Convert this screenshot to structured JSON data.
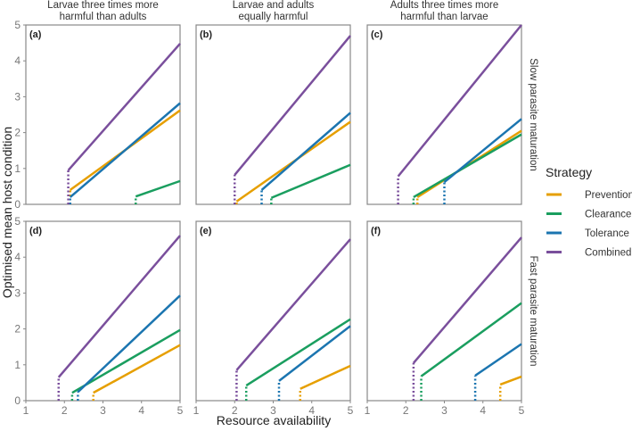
{
  "chart_data": {
    "type": "line",
    "xlabel": "Resource availability",
    "ylabel": "Optimised mean host condition",
    "xlim": [
      1,
      5
    ],
    "ylim": [
      0,
      5
    ],
    "xticks": [
      "1",
      "2",
      "3",
      "4",
      "5"
    ],
    "yticks": [
      "0",
      "1",
      "2",
      "3",
      "4",
      "5"
    ],
    "column_titles": [
      [
        "Larvae three times more",
        "harmful than adults"
      ],
      [
        "Larvae and adults",
        "equally harmful"
      ],
      [
        "Adults three times more",
        "harmful than larvae"
      ]
    ],
    "row_titles": [
      "Slow parasite maturation",
      "Fast parasite maturation"
    ],
    "legend": {
      "title": "Strategy",
      "position": "right",
      "entries": [
        "Prevention",
        "Clearance",
        "Tolerance",
        "Combined"
      ]
    },
    "colors": {
      "Prevention": "#E69F00",
      "Clearance": "#1A9E5F",
      "Tolerance": "#1B75B0",
      "Combined": "#7A4F9C"
    },
    "panels": [
      {
        "label": "(a)",
        "series": [
          {
            "name": "Prevention",
            "x": [
              2.15,
              5
            ],
            "y": [
              0.4,
              2.62
            ]
          },
          {
            "name": "Clearance",
            "x": [
              3.85,
              5
            ],
            "y": [
              0.22,
              0.65
            ]
          },
          {
            "name": "Tolerance",
            "x": [
              2.15,
              5
            ],
            "y": [
              0.2,
              2.82
            ]
          },
          {
            "name": "Combined",
            "x": [
              2.1,
              5
            ],
            "y": [
              0.95,
              4.48
            ]
          }
        ]
      },
      {
        "label": "(b)",
        "series": [
          {
            "name": "Prevention",
            "x": [
              2.05,
              5
            ],
            "y": [
              0.08,
              2.3
            ]
          },
          {
            "name": "Clearance",
            "x": [
              2.95,
              5
            ],
            "y": [
              0.18,
              1.1
            ]
          },
          {
            "name": "Tolerance",
            "x": [
              2.7,
              5
            ],
            "y": [
              0.4,
              2.55
            ]
          },
          {
            "name": "Combined",
            "x": [
              2.0,
              5
            ],
            "y": [
              0.82,
              4.7
            ]
          }
        ]
      },
      {
        "label": "(c)",
        "series": [
          {
            "name": "Prevention",
            "x": [
              2.3,
              5
            ],
            "y": [
              0.2,
              2.05
            ]
          },
          {
            "name": "Clearance",
            "x": [
              2.2,
              5
            ],
            "y": [
              0.2,
              1.95
            ]
          },
          {
            "name": "Tolerance",
            "x": [
              3.0,
              5
            ],
            "y": [
              0.62,
              2.38
            ]
          },
          {
            "name": "Combined",
            "x": [
              1.8,
              5
            ],
            "y": [
              0.78,
              5.0
            ]
          }
        ]
      },
      {
        "label": "(d)",
        "series": [
          {
            "name": "Prevention",
            "x": [
              2.75,
              5
            ],
            "y": [
              0.22,
              1.55
            ]
          },
          {
            "name": "Clearance",
            "x": [
              2.2,
              5
            ],
            "y": [
              0.22,
              1.97
            ]
          },
          {
            "name": "Tolerance",
            "x": [
              2.35,
              5
            ],
            "y": [
              0.24,
              2.93
            ]
          },
          {
            "name": "Combined",
            "x": [
              1.85,
              5
            ],
            "y": [
              0.65,
              4.6
            ]
          }
        ]
      },
      {
        "label": "(e)",
        "series": [
          {
            "name": "Prevention",
            "x": [
              3.7,
              5
            ],
            "y": [
              0.33,
              0.97
            ]
          },
          {
            "name": "Clearance",
            "x": [
              2.3,
              5
            ],
            "y": [
              0.42,
              2.27
            ]
          },
          {
            "name": "Tolerance",
            "x": [
              3.15,
              5
            ],
            "y": [
              0.55,
              2.08
            ]
          },
          {
            "name": "Combined",
            "x": [
              2.05,
              5
            ],
            "y": [
              0.85,
              4.5
            ]
          }
        ]
      },
      {
        "label": "(f)",
        "series": [
          {
            "name": "Prevention",
            "x": [
              4.45,
              5
            ],
            "y": [
              0.45,
              0.67
            ]
          },
          {
            "name": "Clearance",
            "x": [
              2.4,
              5
            ],
            "y": [
              0.68,
              2.72
            ]
          },
          {
            "name": "Tolerance",
            "x": [
              3.8,
              5
            ],
            "y": [
              0.7,
              1.58
            ]
          },
          {
            "name": "Combined",
            "x": [
              2.2,
              5
            ],
            "y": [
              1.05,
              4.55
            ]
          }
        ]
      }
    ]
  }
}
